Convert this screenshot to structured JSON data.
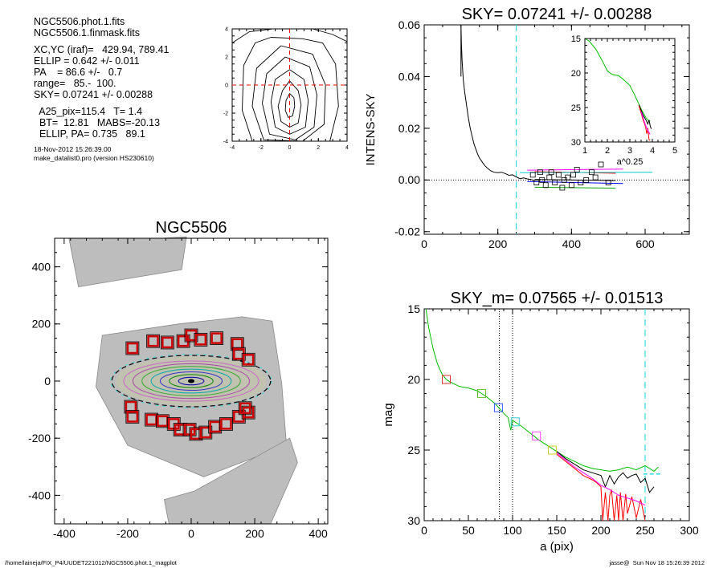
{
  "info": {
    "lines_a": [
      "NGC5506.phot.1.fits",
      "NGC5506.1.finmask.fits"
    ],
    "lines_b": [
      "XC,YC (iraf)=   429.94, 789.41",
      "ELLIP = 0.642 +/- 0.011",
      "PA    = 86.6 +/-   0.7",
      "range=   85.-  100.",
      "SKY= 0.07241 +/- 0.00288"
    ],
    "lines_c": [
      "  A25_pix=115.4   T= 1.4",
      "  BT=  12.81   MABS=-20.13",
      "  ELLIP, PA= 0.735   89.1"
    ],
    "lines_d": [
      "18-Nov-2012 15:26:39.00",
      "make_datalist0.pro (version HS230610)"
    ]
  },
  "footer": {
    "left": "/home/laineja/FIX_P4/UUDET221012/NGC5506.phot.1_magplot",
    "right": "jasse@  Sun Nov 18 15:26:39 2012"
  },
  "chart_data": [
    {
      "id": "contour",
      "type": "contour",
      "title": "",
      "xlim": [
        -4,
        4
      ],
      "ylim": [
        -4,
        4
      ],
      "xticks": [
        -4,
        -2,
        0,
        2,
        4
      ],
      "yticks": [
        -4,
        -2,
        0,
        2,
        4
      ],
      "xtick_labels": [
        "-4",
        "-2",
        "0",
        "2",
        "4"
      ],
      "ytick_labels": [
        "-4",
        "-2",
        "0",
        "2",
        "4"
      ],
      "crosshair": [
        0,
        0
      ],
      "crosshair_color": "#ff0000",
      "contours": [
        [
          [
            0,
            -0.6
          ],
          [
            0.3,
            -0.9
          ],
          [
            0.35,
            -1.5
          ],
          [
            0.2,
            -2.2
          ],
          [
            -0.1,
            -2.3
          ],
          [
            -0.3,
            -1.8
          ],
          [
            -0.25,
            -1.1
          ],
          [
            0,
            -0.6
          ]
        ],
        [
          [
            0,
            0.3
          ],
          [
            0.6,
            -0.4
          ],
          [
            0.8,
            -1.4
          ],
          [
            0.6,
            -2.7
          ],
          [
            0,
            -3.0
          ],
          [
            -0.6,
            -2.6
          ],
          [
            -0.8,
            -1.5
          ],
          [
            -0.5,
            -0.4
          ],
          [
            0,
            0.3
          ]
        ],
        [
          [
            0,
            1.1
          ],
          [
            1.0,
            0.4
          ],
          [
            1.3,
            -1.1
          ],
          [
            1.1,
            -3.0
          ],
          [
            0,
            -3.5
          ],
          [
            -1.0,
            -3.0
          ],
          [
            -1.3,
            -1.2
          ],
          [
            -1.0,
            0.4
          ],
          [
            0,
            1.1
          ]
        ],
        [
          [
            -0.3,
            2.0
          ],
          [
            1.4,
            1.3
          ],
          [
            1.9,
            -0.7
          ],
          [
            1.7,
            -3.0
          ],
          [
            0.4,
            -3.9
          ],
          [
            -1.4,
            -3.5
          ],
          [
            -1.9,
            -1.3
          ],
          [
            -1.6,
            0.8
          ],
          [
            -0.3,
            2.0
          ]
        ],
        [
          [
            -0.6,
            2.8
          ],
          [
            1.6,
            2.2
          ],
          [
            2.5,
            0.0
          ],
          [
            2.4,
            -2.8
          ],
          [
            0.9,
            -4.0
          ],
          [
            -1.8,
            -3.9
          ],
          [
            -2.6,
            -1.5
          ],
          [
            -2.3,
            1.2
          ],
          [
            -0.6,
            2.8
          ]
        ],
        [
          [
            -1.3,
            3.4
          ],
          [
            0.9,
            3.3
          ],
          [
            2.3,
            3.0
          ],
          [
            3.2,
            1.5
          ],
          [
            3.4,
            -1.5
          ],
          [
            2.8,
            -4.0
          ],
          [
            -2.6,
            -4.0
          ],
          [
            -3.3,
            -1.8
          ],
          [
            -3.2,
            1.4
          ],
          [
            -2.4,
            3.0
          ],
          [
            -1.3,
            3.4
          ]
        ],
        [
          [
            -4,
            3.0
          ],
          [
            -2.8,
            3.8
          ],
          [
            -1.2,
            4.0
          ]
        ],
        [
          [
            1.6,
            4.0
          ],
          [
            3.0,
            3.6
          ],
          [
            4.0,
            3.1
          ]
        ]
      ]
    },
    {
      "id": "sky-profile",
      "type": "line",
      "title": "SKY= 0.07241 +/- 0.00288",
      "xlabel": "",
      "ylabel": "INTENS-SKY",
      "xlim": [
        0,
        720
      ],
      "ylim": [
        -0.021,
        0.06
      ],
      "xticks": [
        0,
        200,
        400,
        600
      ],
      "yticks": [
        -0.02,
        0.0,
        0.02,
        0.04,
        0.06
      ],
      "xtick_labels": [
        "0",
        "200",
        "400",
        "600"
      ],
      "ytick_labels": [
        "-0.02",
        "0.00",
        "0.02",
        "0.04",
        "0.06"
      ],
      "vline_x": 250,
      "zero_line": true,
      "series": [
        {
          "name": "",
          "color": "#000000",
          "x": [
            100,
            100,
            101,
            103,
            106,
            110,
            115,
            120,
            125,
            130,
            135,
            140,
            145,
            150,
            155,
            160,
            165,
            170,
            175,
            180,
            190,
            200,
            210,
            220,
            230,
            240,
            250,
            260,
            270,
            280,
            290,
            300
          ],
          "y": [
            0.04,
            0.061,
            0.053,
            0.046,
            0.039,
            0.034,
            0.029,
            0.024,
            0.02,
            0.017,
            0.014,
            0.012,
            0.01,
            0.0085,
            0.0075,
            0.0065,
            0.0055,
            0.0048,
            0.0042,
            0.0036,
            0.003,
            0.0028,
            0.003,
            0.0025,
            0.0018,
            0.002,
            0.0012,
            0.0005,
            0.0008,
            0.0004,
            0.0002,
            -0.0003
          ]
        },
        {
          "name": "",
          "color": "#000000",
          "x": [
            300,
            520
          ],
          "y": [
            0.0002,
            -0.0002
          ]
        },
        {
          "name": "",
          "color": "#ff0000",
          "x": [
            300,
            520
          ],
          "y": [
            0.0032,
            0.0026
          ]
        },
        {
          "name": "",
          "color": "#ff00ff",
          "x": [
            280,
            540
          ],
          "y": [
            0.0038,
            0.0042
          ]
        },
        {
          "name": "",
          "color": "#00aa00",
          "x": [
            300,
            520
          ],
          "y": [
            -0.0028,
            -0.0032
          ]
        },
        {
          "name": "",
          "color": "#00cccc",
          "x": [
            260,
            620
          ],
          "y": [
            0.0028,
            0.003
          ]
        },
        {
          "name": "",
          "color": "#0000ff",
          "x": [
            280,
            540
          ],
          "y": [
            -0.0006,
            -0.0014
          ]
        }
      ],
      "points": {
        "color": "#000000",
        "x": [
          295,
          305,
          315,
          320,
          330,
          340,
          345,
          355,
          365,
          375,
          380,
          390,
          400,
          405,
          415,
          425,
          440,
          455,
          465,
          480,
          500
        ],
        "y": [
          0.002,
          -0.001,
          0.003,
          0.0,
          -0.002,
          0.001,
          0.003,
          -0.001,
          0.002,
          -0.003,
          0.0,
          0.001,
          -0.002,
          0.002,
          0.004,
          -0.001,
          0.0,
          0.003,
          0.001,
          0.006,
          -0.001
        ]
      },
      "inset": {
        "xlabel": "a^0.25",
        "xlim": [
          1,
          5
        ],
        "ylim": [
          30,
          15
        ],
        "xticks": [
          1,
          2,
          3,
          4,
          5
        ],
        "yticks": [
          15,
          20,
          25,
          30
        ],
        "xtick_labels": [
          "1",
          "2",
          "3",
          "4",
          "5"
        ],
        "ytick_labels": [
          "15",
          "20",
          "25",
          "30"
        ],
        "series": [
          {
            "name": "",
            "color": "#00bb00",
            "x": [
              1.0,
              1.2,
              1.5,
              1.8,
              2.0,
              2.2,
              2.5,
              2.7,
              3.0,
              3.2,
              3.4,
              3.5,
              3.6,
              3.7,
              3.8,
              3.85,
              3.9
            ],
            "y": [
              15,
              15.4,
              16.6,
              18.4,
              19.7,
              20.2,
              20.4,
              20.9,
              21.8,
              23.1,
              24.5,
              25.2,
              25.8,
              26.4,
              26.8,
              27.0,
              26.9
            ]
          },
          {
            "name": "",
            "color": "#000000",
            "x": [
              3.4,
              3.5,
              3.6,
              3.7,
              3.8,
              3.85,
              3.9,
              3.95
            ],
            "y": [
              24.6,
              25.4,
              26.2,
              26.7,
              27.4,
              26.8,
              27.6,
              28.1
            ]
          },
          {
            "name": "",
            "color": "#ff0000",
            "x": [
              3.4,
              3.5,
              3.6,
              3.7,
              3.75,
              3.8,
              3.85,
              3.9
            ],
            "y": [
              24.7,
              25.8,
              26.9,
              27.8,
              28.8,
              28.0,
              29.6,
              29.8
            ]
          },
          {
            "name": "",
            "color": "#ff00ff",
            "x": [
              3.5,
              3.6,
              3.7,
              3.8,
              3.9
            ],
            "y": [
              25.6,
              26.6,
              27.6,
              28.3,
              28.9
            ]
          }
        ]
      }
    },
    {
      "id": "galaxy-image",
      "type": "image",
      "title": "NGC5506",
      "xlim": [
        -430,
        430
      ],
      "ylim": [
        -500,
        500
      ],
      "xticks": [
        -400,
        -200,
        0,
        200,
        400
      ],
      "yticks": [
        -400,
        -200,
        0,
        200,
        400
      ],
      "xtick_labels": [
        "-400",
        "-200",
        "0",
        "200",
        "400"
      ],
      "ytick_labels": [
        "-400",
        "-200",
        "0",
        "200",
        "400"
      ],
      "ellipse": {
        "cx": 0,
        "cy": 0,
        "a": 250,
        "b": 90
      },
      "isophote_colors": [
        "#cc66cc",
        "#aa44aa",
        "#33aa33",
        "#00aaaa",
        "#3333cc",
        "#008800",
        "#0000aa"
      ],
      "masked_regions": [
        [
          -185,
          115
        ],
        [
          -120,
          140
        ],
        [
          -75,
          135
        ],
        [
          -25,
          140
        ],
        [
          0,
          160
        ],
        [
          30,
          145
        ],
        [
          80,
          150
        ],
        [
          145,
          130
        ],
        [
          150,
          95
        ],
        [
          180,
          75
        ],
        [
          -190,
          -90
        ],
        [
          -185,
          -125
        ],
        [
          -125,
          -135
        ],
        [
          -90,
          -140
        ],
        [
          -55,
          -150
        ],
        [
          -35,
          -170
        ],
        [
          -5,
          -170
        ],
        [
          15,
          -185
        ],
        [
          45,
          -180
        ],
        [
          75,
          -160
        ],
        [
          110,
          -150
        ],
        [
          150,
          -125
        ],
        [
          180,
          -110
        ],
        [
          170,
          -95
        ]
      ]
    },
    {
      "id": "mag-profile",
      "type": "line",
      "title": "SKY_m=  0.07565 +/- 0.01513",
      "xlabel": "a (pix)",
      "ylabel": "mag",
      "xlim": [
        0,
        300
      ],
      "ylim": [
        30,
        15
      ],
      "xticks": [
        0,
        50,
        100,
        150,
        200,
        250,
        300
      ],
      "yticks": [
        15,
        20,
        25,
        30
      ],
      "xtick_labels": [
        "0",
        "50",
        "100",
        "150",
        "200",
        "250",
        "300"
      ],
      "ytick_labels": [
        "15",
        "20",
        "25",
        "30"
      ],
      "vlines_dotted": [
        85,
        100
      ],
      "vline_dashed": 250,
      "series": [
        {
          "name": "",
          "color": "#00bb00",
          "x": [
            2,
            5,
            10,
            15,
            20,
            25,
            30,
            40,
            50,
            60,
            70,
            80,
            90,
            95,
            98,
            100,
            110,
            120,
            130,
            140,
            150,
            160,
            170,
            180,
            190,
            200,
            210,
            220,
            230,
            240,
            250,
            260,
            265
          ],
          "y": [
            15.0,
            16.3,
            17.8,
            18.9,
            19.6,
            20.0,
            20.2,
            20.5,
            20.6,
            20.8,
            21.2,
            21.7,
            22.4,
            22.7,
            23.6,
            22.9,
            23.3,
            23.8,
            24.3,
            24.7,
            25.1,
            25.5,
            25.8,
            26.1,
            26.3,
            26.4,
            26.5,
            26.4,
            26.2,
            26.4,
            26.1,
            26.5,
            26.2
          ]
        },
        {
          "name": "",
          "color": "#000000",
          "x": [
            150,
            160,
            170,
            180,
            190,
            200,
            205,
            210,
            215,
            220,
            225,
            230,
            235,
            240,
            245,
            250,
            255,
            260
          ],
          "y": [
            25.1,
            25.6,
            26.0,
            26.4,
            26.6,
            26.8,
            27.6,
            26.8,
            27.4,
            26.9,
            26.6,
            27.0,
            26.8,
            26.7,
            27.3,
            27.0,
            28.0,
            27.6
          ]
        },
        {
          "name": "",
          "color": "#ff0000",
          "x": [
            150,
            160,
            170,
            180,
            190,
            195,
            200,
            202,
            205,
            208,
            210,
            212,
            215,
            218,
            220,
            222,
            225,
            228,
            230,
            235,
            240,
            245,
            250
          ],
          "y": [
            25.3,
            25.8,
            26.3,
            26.8,
            27.1,
            27.3,
            27.6,
            30.0,
            28.0,
            30.0,
            28.2,
            27.8,
            30.0,
            28.2,
            30.0,
            28.0,
            30.0,
            28.1,
            29.5,
            28.3,
            29.8,
            28.5,
            30.0
          ]
        },
        {
          "name": "",
          "color": "#ff00ff",
          "x": [
            150,
            160,
            170,
            180,
            190,
            200,
            210,
            220,
            230,
            240,
            250
          ],
          "y": [
            25.2,
            25.7,
            26.2,
            26.6,
            27.0,
            27.5,
            27.8,
            28.2,
            28.4,
            28.6,
            28.9
          ]
        }
      ],
      "markers": [
        {
          "x": 25,
          "y": 20.0,
          "color": "#dd3333"
        },
        {
          "x": 65,
          "y": 21.0,
          "color": "#66bb33"
        },
        {
          "x": 84,
          "y": 22.0,
          "color": "#3355ff"
        },
        {
          "x": 103,
          "y": 23.0,
          "color": "#33cccc"
        },
        {
          "x": 127,
          "y": 24.0,
          "color": "#ff44ff"
        },
        {
          "x": 145,
          "y": 25.0,
          "color": "#cccc33"
        }
      ]
    }
  ]
}
